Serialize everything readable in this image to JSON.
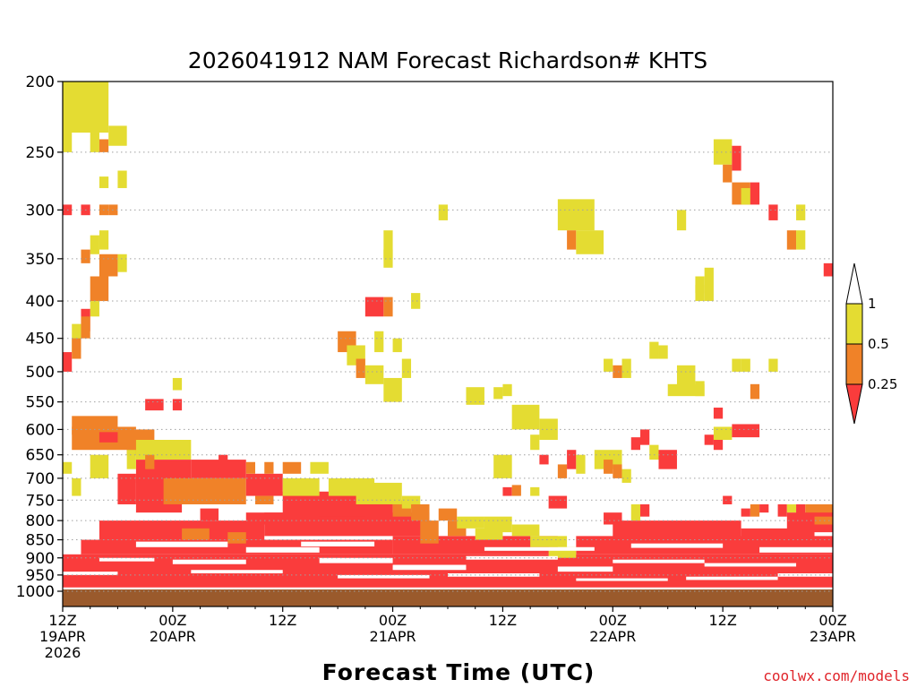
{
  "chart_data": {
    "type": "heatmap",
    "title": "2026041912 NAM Forecast Richardson# KHTS",
    "xlabel": "Forecast Time (UTC)",
    "credit": "coolwx.com/models",
    "y_scale": "log-pressure",
    "ylim": [
      1000,
      200
    ],
    "y_ticks": [
      {
        "value": 200,
        "label": "200"
      },
      {
        "value": 250,
        "label": "250"
      },
      {
        "value": 300,
        "label": "300"
      },
      {
        "value": 350,
        "label": "350"
      },
      {
        "value": 400,
        "label": "400"
      },
      {
        "value": 450,
        "label": "450"
      },
      {
        "value": 500,
        "label": "500"
      },
      {
        "value": 550,
        "label": "550"
      },
      {
        "value": 600,
        "label": "600"
      },
      {
        "value": 650,
        "label": "650"
      },
      {
        "value": 700,
        "label": "700"
      },
      {
        "value": 750,
        "label": "750"
      },
      {
        "value": 800,
        "label": "800"
      },
      {
        "value": 850,
        "label": "850"
      },
      {
        "value": 900,
        "label": "900"
      },
      {
        "value": 950,
        "label": "950"
      },
      {
        "value": 1000,
        "label": "1000"
      }
    ],
    "xlim_hours": [
      0,
      84
    ],
    "x_ticks": [
      {
        "hour": 0,
        "lines": [
          "12Z",
          "19APR",
          "2026"
        ]
      },
      {
        "hour": 12,
        "lines": [
          "00Z",
          "20APR"
        ]
      },
      {
        "hour": 24,
        "lines": [
          "12Z"
        ]
      },
      {
        "hour": 36,
        "lines": [
          "00Z",
          "21APR"
        ]
      },
      {
        "hour": 48,
        "lines": [
          "12Z"
        ]
      },
      {
        "hour": 60,
        "lines": [
          "00Z",
          "22APR"
        ]
      },
      {
        "hour": 72,
        "lines": [
          "12Z"
        ]
      },
      {
        "hour": 84,
        "lines": [
          "00Z",
          "23APR"
        ]
      }
    ],
    "legend": {
      "levels": [
        "1",
        "0.5",
        "0.25"
      ],
      "bins": [
        {
          "range": "0.5-1",
          "color": "#e4dc32"
        },
        {
          "range": "0.25-0.5",
          "color": "#f08228"
        },
        {
          "range": "<0.25",
          "color": "#fa3c3c"
        }
      ]
    },
    "colors": {
      "low": "#fa3c3c",
      "mid": "#f08228",
      "high": "#e4dc32",
      "ground": "#9a5a2c",
      "grid": "#a0a0a0"
    },
    "surface_pressure_hpa": 988,
    "cells": [
      [
        0,
        5,
        200,
        235,
        "high"
      ],
      [
        0,
        1,
        235,
        250,
        "high"
      ],
      [
        3,
        4,
        235,
        250,
        "high"
      ],
      [
        4,
        5,
        240,
        250,
        "mid"
      ],
      [
        5,
        7,
        230,
        245,
        "high"
      ],
      [
        4,
        5,
        270,
        280,
        "high"
      ],
      [
        6,
        7,
        265,
        280,
        "high"
      ],
      [
        0,
        1,
        295,
        305,
        "low"
      ],
      [
        2,
        3,
        295,
        305,
        "low"
      ],
      [
        4,
        5,
        295,
        305,
        "mid"
      ],
      [
        5,
        6,
        295,
        305,
        "mid"
      ],
      [
        3,
        4,
        325,
        345,
        "high"
      ],
      [
        4,
        5,
        320,
        340,
        "high"
      ],
      [
        2,
        3,
        340,
        355,
        "mid"
      ],
      [
        4,
        6,
        345,
        370,
        "mid"
      ],
      [
        6,
        7,
        345,
        365,
        "high"
      ],
      [
        3,
        5,
        370,
        400,
        "mid"
      ],
      [
        3,
        4,
        400,
        420,
        "high"
      ],
      [
        2,
        3,
        410,
        440,
        "low"
      ],
      [
        1,
        2,
        430,
        470,
        "high"
      ],
      [
        2,
        3,
        420,
        450,
        "mid"
      ],
      [
        0,
        1,
        470,
        500,
        "low"
      ],
      [
        1,
        2,
        450,
        480,
        "mid"
      ],
      [
        1,
        6,
        575,
        610,
        "mid"
      ],
      [
        1,
        8,
        595,
        640,
        "mid"
      ],
      [
        4,
        6,
        605,
        625,
        "low"
      ],
      [
        7,
        10,
        600,
        650,
        "mid"
      ],
      [
        8,
        14,
        620,
        660,
        "high"
      ],
      [
        8,
        14,
        660,
        710,
        "low"
      ],
      [
        7,
        8,
        640,
        680,
        "high"
      ],
      [
        9,
        10,
        650,
        680,
        "mid"
      ],
      [
        14,
        20,
        660,
        700,
        "low"
      ],
      [
        6,
        8,
        690,
        760,
        "low"
      ],
      [
        8,
        13,
        700,
        780,
        "low"
      ],
      [
        11,
        20,
        700,
        760,
        "mid"
      ],
      [
        20,
        24,
        690,
        740,
        "low"
      ],
      [
        21,
        23,
        740,
        760,
        "mid"
      ],
      [
        3,
        5,
        650,
        700,
        "high"
      ],
      [
        0,
        1,
        665,
        690,
        "high"
      ],
      [
        1,
        2,
        700,
        740,
        "high"
      ],
      [
        9,
        11,
        545,
        565,
        "low"
      ],
      [
        12,
        13,
        545,
        565,
        "low"
      ],
      [
        12,
        13,
        510,
        530,
        "high"
      ],
      [
        17,
        18,
        650,
        680,
        "low"
      ],
      [
        20,
        21,
        665,
        690,
        "mid"
      ],
      [
        22,
        23,
        665,
        690,
        "mid"
      ],
      [
        24,
        26,
        665,
        690,
        "mid"
      ],
      [
        27,
        29,
        665,
        690,
        "high"
      ],
      [
        24,
        33,
        730,
        790,
        "low"
      ],
      [
        24,
        28,
        700,
        740,
        "high"
      ],
      [
        28,
        36,
        750,
        790,
        "low"
      ],
      [
        29,
        34,
        700,
        740,
        "high"
      ],
      [
        36,
        38,
        750,
        790,
        "mid"
      ],
      [
        32,
        37,
        710,
        760,
        "high"
      ],
      [
        37,
        39,
        740,
        770,
        "high"
      ],
      [
        15,
        17,
        770,
        800,
        "low"
      ],
      [
        20,
        24,
        780,
        810,
        "low"
      ],
      [
        13,
        16,
        820,
        850,
        "mid"
      ],
      [
        18,
        20,
        830,
        860,
        "mid"
      ],
      [
        30,
        32,
        440,
        470,
        "mid"
      ],
      [
        31,
        33,
        460,
        490,
        "high"
      ],
      [
        32,
        33,
        480,
        510,
        "mid"
      ],
      [
        33,
        35,
        490,
        520,
        "high"
      ],
      [
        34,
        35,
        440,
        470,
        "high"
      ],
      [
        33,
        35,
        395,
        420,
        "low"
      ],
      [
        35,
        36,
        395,
        420,
        "mid"
      ],
      [
        36,
        37,
        450,
        470,
        "high"
      ],
      [
        37,
        38,
        480,
        510,
        "high"
      ],
      [
        35,
        36,
        320,
        350,
        "high"
      ],
      [
        35,
        36,
        340,
        360,
        "high"
      ],
      [
        35,
        37,
        510,
        550,
        "high"
      ],
      [
        38,
        39,
        390,
        410,
        "high"
      ],
      [
        38,
        40,
        760,
        800,
        "mid"
      ],
      [
        39,
        41,
        800,
        860,
        "mid"
      ],
      [
        41,
        43,
        770,
        800,
        "mid"
      ],
      [
        42,
        44,
        800,
        840,
        "mid"
      ],
      [
        43,
        46,
        790,
        820,
        "high"
      ],
      [
        46,
        49,
        790,
        830,
        "high"
      ],
      [
        45,
        48,
        820,
        850,
        "high"
      ],
      [
        49,
        52,
        810,
        840,
        "high"
      ],
      [
        51,
        55,
        840,
        870,
        "high"
      ],
      [
        53,
        56,
        870,
        900,
        "high"
      ],
      [
        41,
        42,
        295,
        310,
        "high"
      ],
      [
        44,
        46,
        525,
        555,
        "high"
      ],
      [
        47,
        48,
        525,
        545,
        "high"
      ],
      [
        48,
        49,
        520,
        540,
        "high"
      ],
      [
        49,
        52,
        555,
        600,
        "high"
      ],
      [
        51,
        52,
        610,
        640,
        "high"
      ],
      [
        52,
        54,
        580,
        620,
        "high"
      ],
      [
        47,
        49,
        650,
        700,
        "high"
      ],
      [
        48,
        49,
        720,
        740,
        "low"
      ],
      [
        49,
        50,
        715,
        740,
        "mid"
      ],
      [
        51,
        52,
        720,
        740,
        "high"
      ],
      [
        53,
        55,
        740,
        770,
        "low"
      ],
      [
        52,
        53,
        650,
        670,
        "low"
      ],
      [
        54,
        55,
        670,
        700,
        "mid"
      ],
      [
        55,
        56,
        640,
        680,
        "low"
      ],
      [
        56,
        57,
        650,
        690,
        "high"
      ],
      [
        54,
        58,
        290,
        320,
        "high"
      ],
      [
        55,
        56,
        320,
        340,
        "mid"
      ],
      [
        56,
        59,
        320,
        345,
        "high"
      ],
      [
        58,
        61,
        640,
        680,
        "high"
      ],
      [
        59,
        60,
        660,
        690,
        "mid"
      ],
      [
        60,
        61,
        670,
        700,
        "mid"
      ],
      [
        61,
        62,
        680,
        710,
        "high"
      ],
      [
        60,
        61,
        490,
        510,
        "mid"
      ],
      [
        59,
        60,
        480,
        500,
        "high"
      ],
      [
        61,
        62,
        480,
        510,
        "high"
      ],
      [
        62,
        63,
        615,
        640,
        "low"
      ],
      [
        63,
        64,
        600,
        630,
        "low"
      ],
      [
        64,
        65,
        630,
        660,
        "high"
      ],
      [
        65,
        67,
        640,
        680,
        "low"
      ],
      [
        67,
        69,
        490,
        530,
        "high"
      ],
      [
        69,
        70,
        515,
        540,
        "high"
      ],
      [
        63,
        64,
        760,
        790,
        "low"
      ],
      [
        62,
        63,
        760,
        800,
        "high"
      ],
      [
        59,
        61,
        780,
        810,
        "low"
      ],
      [
        64,
        65,
        455,
        480,
        "high"
      ],
      [
        65,
        66,
        460,
        480,
        "high"
      ],
      [
        67,
        68,
        300,
        320,
        "high"
      ],
      [
        70,
        71,
        360,
        400,
        "high"
      ],
      [
        69,
        70,
        370,
        390,
        "high"
      ],
      [
        69,
        70,
        380,
        400,
        "high"
      ],
      [
        71,
        72,
        560,
        580,
        "low"
      ],
      [
        71,
        73,
        595,
        620,
        "high"
      ],
      [
        73,
        76,
        590,
        615,
        "low"
      ],
      [
        70,
        71,
        610,
        630,
        "low"
      ],
      [
        71,
        72,
        620,
        640,
        "low"
      ],
      [
        71,
        73,
        240,
        260,
        "high"
      ],
      [
        72,
        73,
        260,
        275,
        "mid"
      ],
      [
        73,
        74,
        245,
        265,
        "low"
      ],
      [
        73,
        75,
        275,
        295,
        "mid"
      ],
      [
        74,
        75,
        280,
        295,
        "high"
      ],
      [
        75,
        76,
        275,
        295,
        "low"
      ],
      [
        77,
        78,
        295,
        310,
        "low"
      ],
      [
        80,
        81,
        295,
        310,
        "high"
      ],
      [
        79,
        80,
        320,
        340,
        "mid"
      ],
      [
        80,
        81,
        320,
        340,
        "high"
      ],
      [
        83,
        84,
        355,
        370,
        "low"
      ],
      [
        74,
        75,
        480,
        500,
        "high"
      ],
      [
        75,
        76,
        520,
        545,
        "mid"
      ],
      [
        77,
        78,
        480,
        500,
        "high"
      ],
      [
        73,
        74,
        480,
        500,
        "high"
      ],
      [
        66,
        70,
        520,
        540,
        "high"
      ],
      [
        72,
        73,
        740,
        760,
        "low"
      ],
      [
        74,
        75,
        770,
        790,
        "low"
      ],
      [
        75,
        76,
        760,
        790,
        "mid"
      ],
      [
        76,
        77,
        760,
        780,
        "low"
      ],
      [
        78,
        79,
        760,
        790,
        "low"
      ],
      [
        79,
        80,
        760,
        780,
        "high"
      ],
      [
        80,
        81,
        760,
        790,
        "low"
      ],
      [
        81,
        84,
        760,
        790,
        "mid"
      ],
      [
        79,
        84,
        780,
        830,
        "low"
      ],
      [
        82,
        84,
        790,
        810,
        "mid"
      ]
    ],
    "bands": [
      [
        0,
        84,
        890,
        988,
        "low"
      ],
      [
        2,
        36,
        850,
        890,
        "low"
      ],
      [
        4,
        22,
        800,
        850,
        "low"
      ],
      [
        22,
        40,
        780,
        840,
        "low"
      ],
      [
        36,
        54,
        840,
        890,
        "low"
      ],
      [
        56,
        84,
        840,
        890,
        "low"
      ],
      [
        60,
        74,
        800,
        850,
        "low"
      ],
      [
        74,
        82,
        820,
        850,
        "low"
      ]
    ],
    "gaps": [
      [
        4,
        10,
        900,
        910
      ],
      [
        12,
        20,
        905,
        918
      ],
      [
        20,
        28,
        870,
        885
      ],
      [
        28,
        36,
        900,
        915
      ],
      [
        36,
        44,
        920,
        935
      ],
      [
        44,
        54,
        895,
        905
      ],
      [
        54,
        60,
        925,
        940
      ],
      [
        60,
        70,
        905,
        915
      ],
      [
        70,
        80,
        915,
        925
      ],
      [
        8,
        18,
        855,
        870
      ],
      [
        26,
        34,
        855,
        868
      ],
      [
        46,
        58,
        870,
        880
      ],
      [
        62,
        72,
        860,
        872
      ],
      [
        76,
        84,
        870,
        885
      ],
      [
        0,
        6,
        940,
        950
      ],
      [
        14,
        24,
        935,
        945
      ],
      [
        30,
        40,
        950,
        960
      ],
      [
        42,
        52,
        945,
        955
      ],
      [
        56,
        66,
        960,
        968
      ],
      [
        68,
        78,
        955,
        965
      ],
      [
        78,
        84,
        945,
        955
      ]
    ]
  }
}
